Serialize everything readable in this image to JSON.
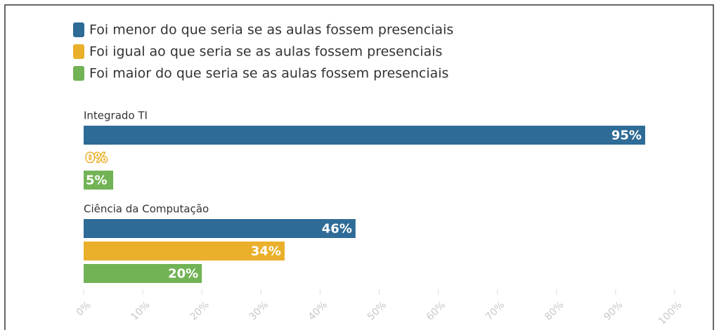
{
  "chart_data": {
    "type": "bar",
    "orientation": "horizontal",
    "categories": [
      "Integrado TI",
      "Ciência da Computação"
    ],
    "series": [
      {
        "name": "Foi menor do que seria se as aulas fossem presenciais",
        "color": "#2e6b97",
        "values": [
          95,
          46
        ],
        "value_labels": [
          "95%",
          "46%"
        ]
      },
      {
        "name": "Foi igual ao que seria se as aulas fossem presenciais",
        "color": "#eab02b",
        "values": [
          0,
          34
        ],
        "value_labels": [
          "0%",
          "34%"
        ]
      },
      {
        "name": "Foi maior do que seria se as aulas fossem presenciais",
        "color": "#72b356",
        "values": [
          5,
          20
        ],
        "value_labels": [
          "5%",
          "20%"
        ]
      }
    ],
    "xlim": [
      0,
      100
    ],
    "xticks": [
      {
        "value": 0,
        "label": "0%"
      },
      {
        "value": 10,
        "label": "10%"
      },
      {
        "value": 20,
        "label": "20%"
      },
      {
        "value": 30,
        "label": "30%"
      },
      {
        "value": 40,
        "label": "40%"
      },
      {
        "value": 50,
        "label": "50%"
      },
      {
        "value": 60,
        "label": "60%"
      },
      {
        "value": 70,
        "label": "70%"
      },
      {
        "value": 80,
        "label": "80%"
      },
      {
        "value": 90,
        "label": "90%"
      },
      {
        "value": 100,
        "label": "100%"
      }
    ],
    "legend": "top-left"
  }
}
